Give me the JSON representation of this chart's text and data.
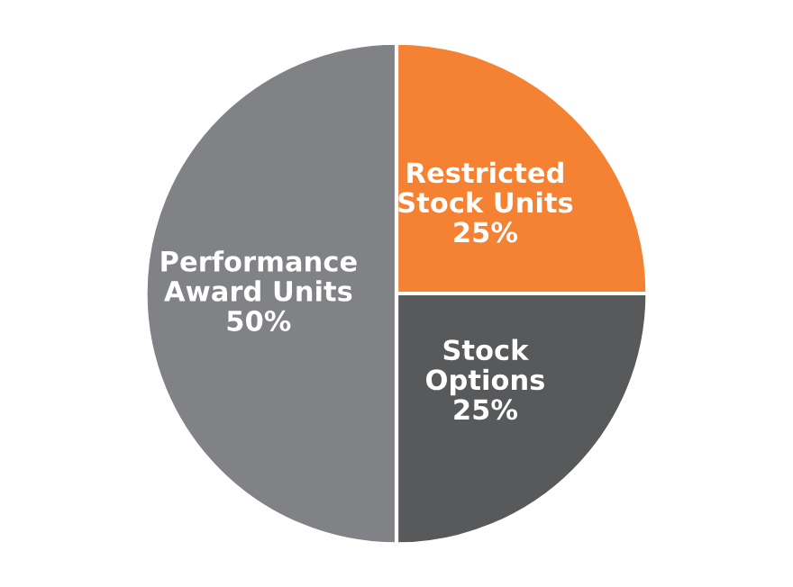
{
  "chart_data": {
    "type": "pie",
    "categories": [
      "Restricted\nStock Units",
      "Stock\nOptions",
      "Performance\nAward Units"
    ],
    "values": [
      25,
      25,
      50
    ],
    "colors": [
      "#f58233",
      "#58595b",
      "#808285"
    ],
    "value_labels": [
      "25%",
      "25%",
      "50%"
    ]
  }
}
